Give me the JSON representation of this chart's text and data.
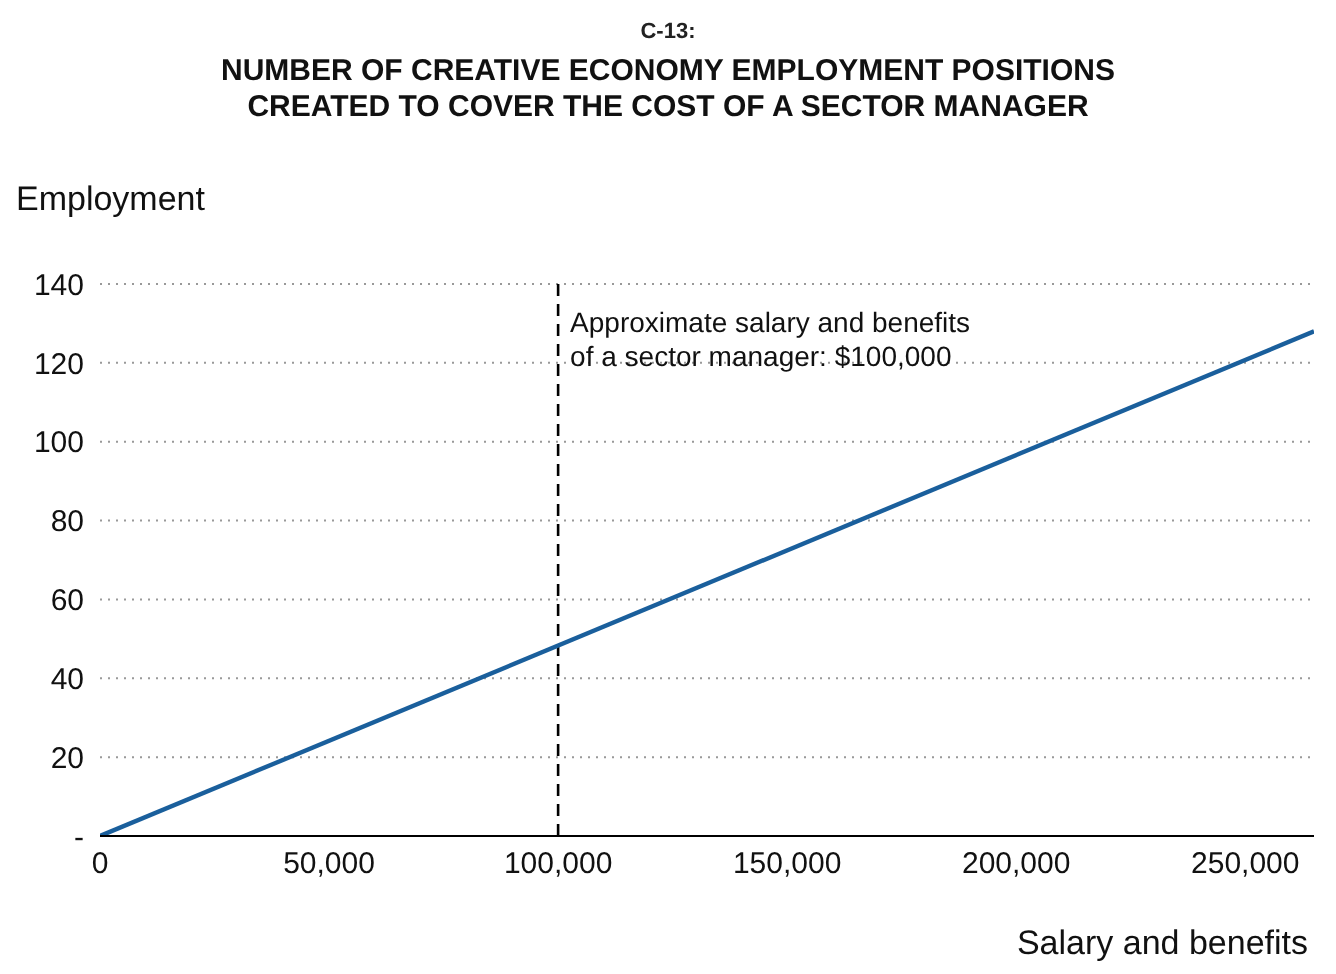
{
  "chart_data": {
    "type": "line",
    "title": "NUMBER OF CREATIVE ECONOMY EMPLOYMENT POSITIONS CREATED TO COVER THE COST OF A SECTOR MANAGER",
    "annotations": [
      "C-13:"
    ],
    "xlabel": "Salary and benefits",
    "ylabel": "Employment",
    "x": [
      0,
      265000
    ],
    "series": [
      {
        "color": "#1a5f9c",
        "values": [
          0,
          128
        ]
      }
    ],
    "xlim": [
      0,
      265000
    ],
    "xticks": [
      {
        "value": 0,
        "label": "0"
      },
      {
        "value": 50000,
        "label": "50,000"
      },
      {
        "value": 100000,
        "label": "100,000"
      },
      {
        "value": 150000,
        "label": "150,000"
      },
      {
        "value": 200000,
        "label": "200,000"
      },
      {
        "value": 250000,
        "label": "250,000"
      }
    ],
    "ylim": [
      0,
      140
    ],
    "yticks": [
      {
        "value": 0,
        "label": "-"
      },
      20,
      40,
      60,
      80,
      100,
      120,
      140
    ],
    "ref_lines": [
      {
        "axis": "x",
        "value": 100000,
        "label": "Approximate salary and benefits\nof a sector manager: $100,000",
        "color": "#000000",
        "line_style": "dashed"
      }
    ],
    "grid": "y",
    "marker": "none",
    "line_style": "solid"
  }
}
